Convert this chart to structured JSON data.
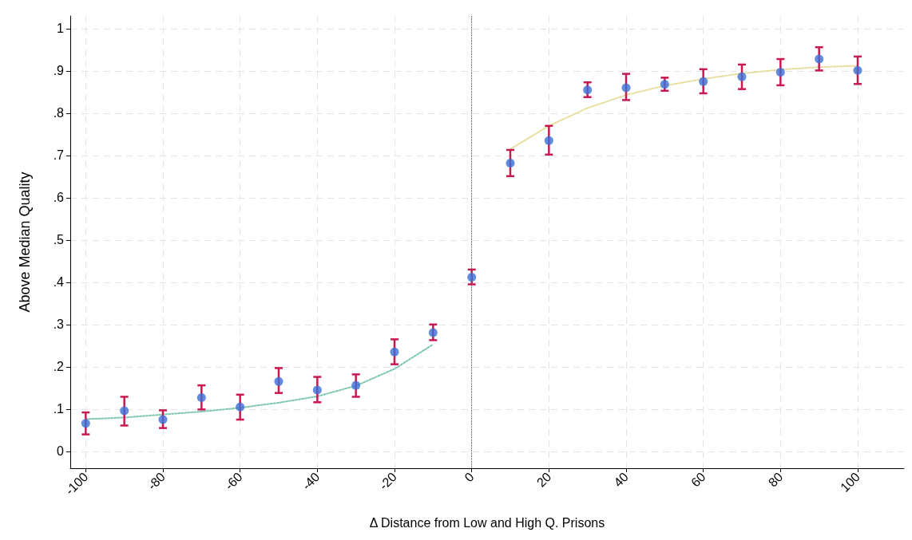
{
  "chart_data": {
    "type": "scatter",
    "xlabel": "Δ Distance from Low and High Q. Prisons",
    "ylabel": "Above Median Quality",
    "xlim": [
      -104,
      112
    ],
    "xticks": [
      -100,
      -80,
      -60,
      -40,
      -20,
      0,
      20,
      40,
      60,
      80,
      100
    ],
    "ylim": [
      -0.04,
      1.03
    ],
    "yticks": [
      0,
      {
        "value": 0.1,
        "label": ".1"
      },
      {
        "value": 0.2,
        "label": ".2"
      },
      {
        "value": 0.3,
        "label": ".3"
      },
      {
        "value": 0.4,
        "label": ".4"
      },
      {
        "value": 0.5,
        "label": ".5"
      },
      {
        "value": 0.6,
        "label": ".6"
      },
      {
        "value": 0.7,
        "label": ".7"
      },
      {
        "value": 0.8,
        "label": ".8"
      },
      {
        "value": 0.9,
        "label": ".9"
      },
      1
    ],
    "grid": true,
    "ref_lines": [
      {
        "axis": "x",
        "value": 0,
        "color": "#555555",
        "line_style": "dotted"
      }
    ],
    "series": [
      {
        "color": "#3b6fd6",
        "marker": "circle",
        "x": [
          -100,
          -90,
          -80,
          -70,
          -60,
          -50,
          -40,
          -30,
          -20,
          -10,
          0,
          10,
          20,
          30,
          40,
          50,
          60,
          70,
          80,
          90,
          100
        ],
        "values": [
          0.066,
          0.096,
          0.075,
          0.127,
          0.105,
          0.165,
          0.145,
          0.156,
          0.235,
          0.281,
          0.412,
          0.682,
          0.735,
          0.855,
          0.86,
          0.868,
          0.875,
          0.886,
          0.897,
          0.928,
          0.901
        ],
        "errors": [
          [
            0.04,
            0.092
          ],
          [
            0.061,
            0.129
          ],
          [
            0.055,
            0.097
          ],
          [
            0.099,
            0.156
          ],
          [
            0.075,
            0.134
          ],
          [
            0.138,
            0.197
          ],
          [
            0.116,
            0.176
          ],
          [
            0.129,
            0.182
          ],
          [
            0.206,
            0.265
          ],
          [
            0.263,
            0.3
          ],
          [
            0.395,
            0.43
          ],
          [
            0.651,
            0.713
          ],
          [
            0.702,
            0.77
          ],
          [
            0.838,
            0.873
          ],
          [
            0.831,
            0.893
          ],
          [
            0.853,
            0.884
          ],
          [
            0.847,
            0.904
          ],
          [
            0.857,
            0.915
          ],
          [
            0.866,
            0.928
          ],
          [
            0.901,
            0.956
          ],
          [
            0.869,
            0.934
          ]
        ]
      },
      {
        "type": "line",
        "color": "#7fc8b0",
        "line_style": "dotted",
        "marker": "none",
        "x": [
          -100,
          -90,
          -80,
          -70,
          -60,
          -50,
          -40,
          -30,
          -20,
          -10
        ],
        "values": [
          0.076,
          0.08,
          0.087,
          0.094,
          0.103,
          0.115,
          0.13,
          0.155,
          0.195,
          0.253
        ]
      },
      {
        "type": "line",
        "color": "#e8dc9a",
        "line_style": "dotted",
        "marker": "none",
        "x": [
          10,
          20,
          30,
          40,
          50,
          60,
          70,
          80,
          90,
          100
        ],
        "values": [
          0.715,
          0.77,
          0.812,
          0.843,
          0.865,
          0.881,
          0.894,
          0.903,
          0.909,
          0.912
        ]
      }
    ]
  }
}
